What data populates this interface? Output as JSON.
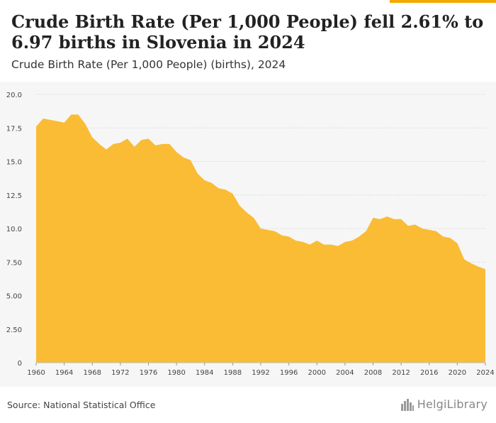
{
  "header": {
    "title": "Crude Birth Rate (Per 1,000 People) fell 2.61% to 6.97 births in Slovenia in 2024",
    "subtitle": "Crude Birth Rate (Per 1,000 People) (births), 2024"
  },
  "footer": {
    "source": "Source: National Statistical Office",
    "brand": "HelgiLibrary"
  },
  "colors": {
    "area": "#f9bc34",
    "accent": "#f2a900",
    "grid": "#dcdcdc",
    "axis_text": "#444444",
    "plot_bg": "#f6f6f6"
  },
  "icons": {
    "brand_mark": "city-skyline-icon"
  },
  "chart_data": {
    "type": "area",
    "title": "Crude Birth Rate (Per 1,000 People) fell 2.61% to 6.97 births in Slovenia in 2024",
    "subtitle": "Crude Birth Rate (Per 1,000 People) (births), 2024",
    "xlabel": "",
    "ylabel": "",
    "xlim": [
      1960,
      2024
    ],
    "ylim": [
      0,
      20
    ],
    "y_ticks": [
      "0",
      "2.50",
      "5.00",
      "7.50",
      "10.0",
      "12.5",
      "15.0",
      "17.5",
      "20.0"
    ],
    "y_tick_values": [
      0,
      2.5,
      5,
      7.5,
      10,
      12.5,
      15,
      17.5,
      20
    ],
    "x_ticks": [
      "1960",
      "1964",
      "1968",
      "1972",
      "1976",
      "1980",
      "1984",
      "1988",
      "1992",
      "1996",
      "2000",
      "2004",
      "2008",
      "2012",
      "2016",
      "2020",
      "2024"
    ],
    "grid": true,
    "legend": "none",
    "series": [
      {
        "x": [
          1960,
          1961,
          1962,
          1963,
          1964,
          1965,
          1966,
          1967,
          1968,
          1969,
          1970,
          1971,
          1972,
          1973,
          1974,
          1975,
          1976,
          1977,
          1978,
          1979,
          1980,
          1981,
          1982,
          1983,
          1984,
          1985,
          1986,
          1987,
          1988,
          1989,
          1990,
          1991,
          1992,
          1993,
          1994,
          1995,
          1996,
          1997,
          1998,
          1999,
          2000,
          2001,
          2002,
          2003,
          2004,
          2005,
          2006,
          2007,
          2008,
          2009,
          2010,
          2011,
          2012,
          2013,
          2014,
          2015,
          2016,
          2017,
          2018,
          2019,
          2020,
          2021,
          2022,
          2023,
          2024
        ],
        "values": [
          17.6,
          18.2,
          18.1,
          18.0,
          17.9,
          18.5,
          18.5,
          17.8,
          16.8,
          16.3,
          15.9,
          16.3,
          16.4,
          16.7,
          16.1,
          16.6,
          16.7,
          16.2,
          16.3,
          16.3,
          15.7,
          15.3,
          15.1,
          14.1,
          13.6,
          13.4,
          13.0,
          12.9,
          12.6,
          11.7,
          11.2,
          10.8,
          10.0,
          9.9,
          9.8,
          9.5,
          9.4,
          9.1,
          9.0,
          8.8,
          9.1,
          8.8,
          8.8,
          8.7,
          9.0,
          9.1,
          9.4,
          9.8,
          10.8,
          10.7,
          10.9,
          10.7,
          10.7,
          10.2,
          10.3,
          10.0,
          9.9,
          9.8,
          9.4,
          9.3,
          8.9,
          7.7,
          7.4,
          7.16,
          6.97
        ]
      }
    ]
  }
}
